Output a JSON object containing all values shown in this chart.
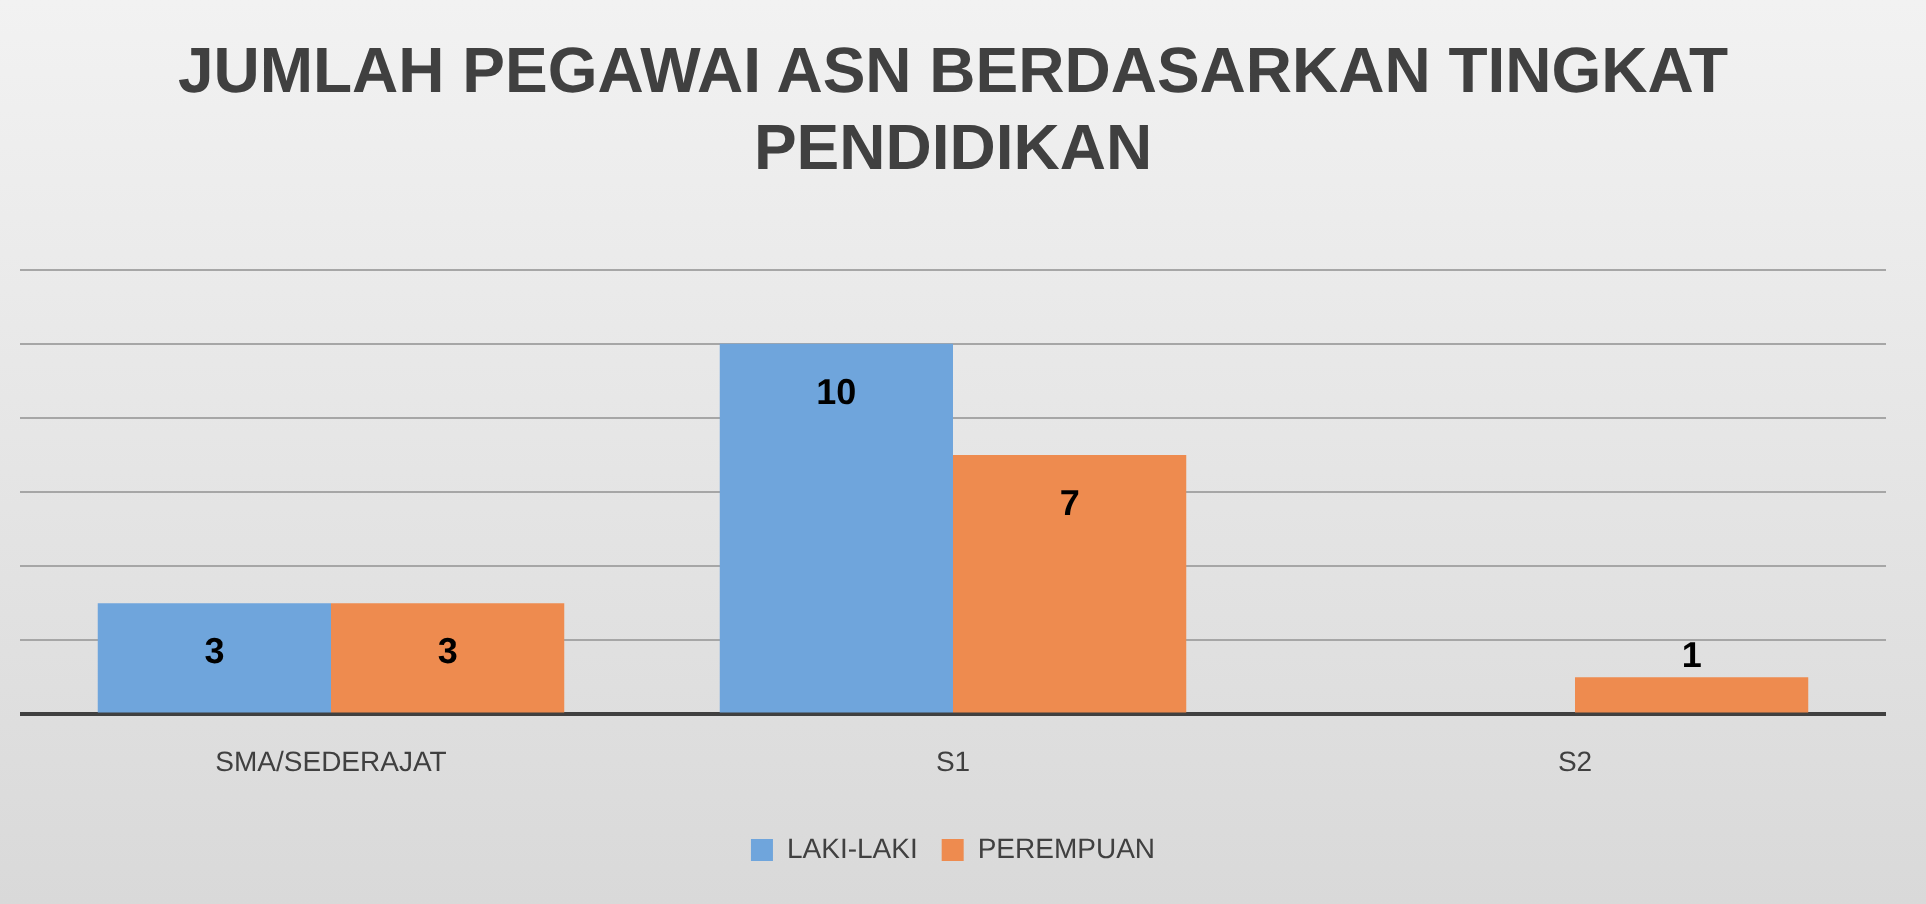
{
  "chart_data": {
    "type": "bar",
    "title": "JUMLAH PEGAWAI ASN BERDASARKAN TINGKAT PENDIDIKAN",
    "categories": [
      "SMA/SEDERAJAT",
      "S1",
      "S2"
    ],
    "series": [
      {
        "name": "LAKI-LAKI",
        "color": "#6fa5dc",
        "values": [
          3,
          10,
          null
        ]
      },
      {
        "name": "PEREMPUAN",
        "color": "#ee8b4f",
        "values": [
          3,
          7,
          1
        ]
      }
    ],
    "ylim": [
      0,
      12
    ],
    "grid": "y",
    "tick_labels": "x",
    "legend": "bottom",
    "data_labels": true
  }
}
